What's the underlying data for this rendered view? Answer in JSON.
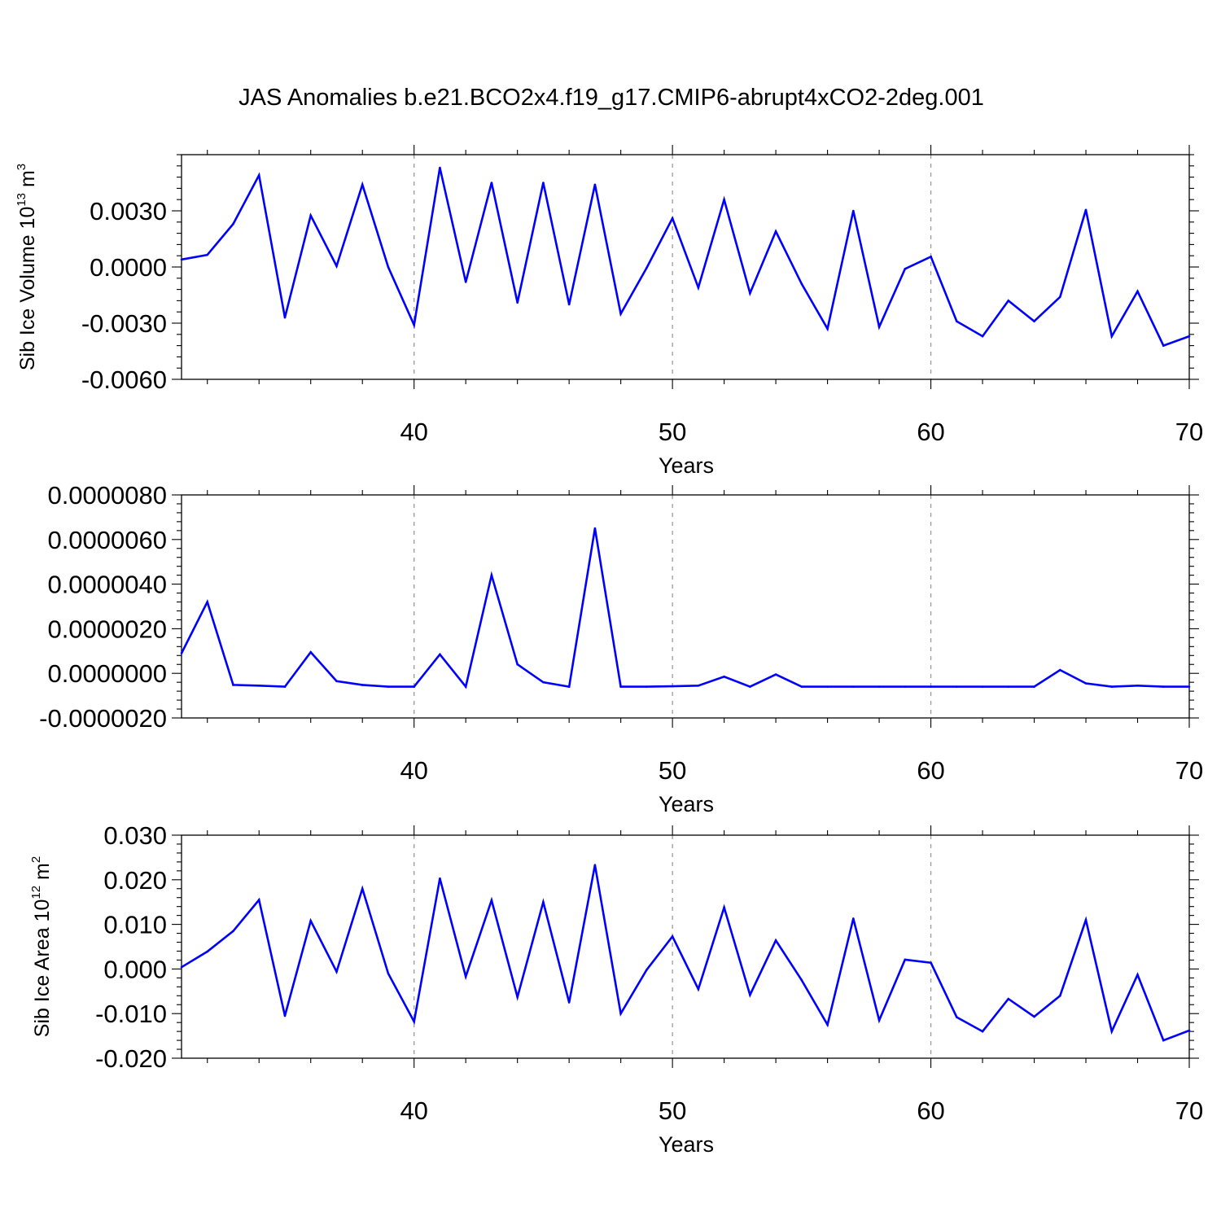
{
  "title": "JAS Anomalies b.e21.BCO2x4.f19_g17.CMIP6-abrupt4xCO2-2deg.001",
  "colors": {
    "line": "#0000ff",
    "grid": "#9a9a9a",
    "axis": "#000000"
  },
  "chart_data": [
    {
      "type": "line",
      "ylabel_text": "Sib Ice Volume 10",
      "ylabel_exp": "13",
      "ylabel_unit": " m",
      "ylabel_unit_exp": "3",
      "xlabel": "Years",
      "xlim": [
        31,
        70
      ],
      "ylim": [
        -0.006,
        0.006
      ],
      "x_ticks": [
        40,
        50,
        60,
        70
      ],
      "x_tick_labels": [
        "40",
        "50",
        "60",
        "70"
      ],
      "y_ticks": [
        -0.006,
        -0.003,
        0.0,
        0.003
      ],
      "y_tick_labels": [
        "-0.0060",
        "-0.0030",
        "0.0000",
        "0.0030"
      ],
      "grid_x": [
        40,
        50,
        60
      ],
      "x": [
        31,
        32,
        33,
        34,
        35,
        36,
        37,
        38,
        39,
        40,
        41,
        42,
        43,
        44,
        45,
        46,
        47,
        48,
        49,
        50,
        51,
        52,
        53,
        54,
        55,
        56,
        57,
        58,
        59,
        60,
        61,
        62,
        63,
        64,
        65,
        66,
        67,
        68,
        69,
        70
      ],
      "values": [
        0.0004,
        0.00065,
        0.0023,
        0.0049,
        -0.0027,
        0.00275,
        5e-05,
        0.0044,
        0.0,
        -0.0031,
        0.0053,
        -0.0008,
        0.0045,
        -0.0019,
        0.0045,
        -0.002,
        0.0044,
        -0.0025,
        -5e-05,
        0.0026,
        -0.0011,
        0.0036,
        -0.0014,
        0.0019,
        -0.0009,
        -0.0033,
        0.003,
        -0.0032,
        -0.0001,
        0.00055,
        -0.0029,
        -0.0037,
        -0.0018,
        -0.0029,
        -0.0016,
        0.00305,
        -0.0037,
        -0.0013,
        -0.0042,
        -0.0037
      ]
    },
    {
      "type": "line",
      "ylabel_text": "",
      "xlabel": "Years",
      "xlim": [
        31,
        70
      ],
      "ylim": [
        -2e-06,
        8e-06
      ],
      "x_ticks": [
        40,
        50,
        60,
        70
      ],
      "x_tick_labels": [
        "40",
        "50",
        "60",
        "70"
      ],
      "y_ticks": [
        -2e-06,
        0.0,
        2e-06,
        4e-06,
        6e-06,
        8e-06
      ],
      "y_tick_labels": [
        "-0.0000020",
        "0.0000000",
        "0.0000020",
        "0.0000040",
        "0.0000060",
        "0.0000080"
      ],
      "grid_x": [
        40,
        50,
        60
      ],
      "x": [
        31,
        32,
        33,
        34,
        35,
        36,
        37,
        38,
        39,
        40,
        41,
        42,
        43,
        44,
        45,
        46,
        47,
        48,
        49,
        50,
        51,
        52,
        53,
        54,
        55,
        56,
        57,
        58,
        59,
        60,
        61,
        62,
        63,
        64,
        65,
        66,
        67,
        68,
        69,
        70
      ],
      "values": [
        9e-07,
        3.2e-06,
        -5.2e-07,
        -5.5e-07,
        -6e-07,
        9.5e-07,
        -3.5e-07,
        -5.2e-07,
        -6e-07,
        -6e-07,
        8.5e-07,
        -6e-07,
        4.4e-06,
        4e-07,
        -4e-07,
        -6e-07,
        6.5e-06,
        -6e-07,
        -6e-07,
        -5.8e-07,
        -5.5e-07,
        -1.5e-07,
        -6e-07,
        -5e-08,
        -6e-07,
        -6e-07,
        -6e-07,
        -6e-07,
        -6e-07,
        -6e-07,
        -6e-07,
        -6e-07,
        -6e-07,
        -6e-07,
        1.5e-07,
        -4.5e-07,
        -6e-07,
        -5.5e-07,
        -6e-07,
        -6e-07
      ]
    },
    {
      "type": "line",
      "ylabel_text": "Sib Ice Area 10",
      "ylabel_exp": "12",
      "ylabel_unit": " m",
      "ylabel_unit_exp": "2",
      "xlabel": "Years",
      "xlim": [
        31,
        70
      ],
      "ylim": [
        -0.02,
        0.03
      ],
      "x_ticks": [
        40,
        50,
        60,
        70
      ],
      "x_tick_labels": [
        "40",
        "50",
        "60",
        "70"
      ],
      "y_ticks": [
        -0.02,
        -0.01,
        0.0,
        0.01,
        0.02,
        0.03
      ],
      "y_tick_labels": [
        "-0.020",
        "-0.010",
        "0.000",
        "0.010",
        "0.020",
        "0.030"
      ],
      "grid_x": [
        40,
        50,
        60
      ],
      "x": [
        31,
        32,
        33,
        34,
        35,
        36,
        37,
        38,
        39,
        40,
        41,
        42,
        43,
        44,
        45,
        46,
        47,
        48,
        49,
        50,
        51,
        52,
        53,
        54,
        55,
        56,
        57,
        58,
        59,
        60,
        61,
        62,
        63,
        64,
        65,
        66,
        67,
        68,
        69,
        70
      ],
      "values": [
        0.0004,
        0.0039,
        0.0085,
        0.0155,
        -0.0105,
        0.0108,
        -0.0006,
        0.018,
        -0.001,
        -0.0118,
        0.0203,
        -0.0017,
        0.0154,
        -0.0063,
        0.015,
        -0.0075,
        0.0233,
        -0.01,
        -0.0002,
        0.0073,
        -0.0045,
        0.0138,
        -0.0058,
        0.0064,
        -0.0025,
        -0.0125,
        0.0113,
        -0.0115,
        0.0021,
        0.0014,
        -0.0108,
        -0.014,
        -0.0067,
        -0.0107,
        -0.006,
        0.011,
        -0.014,
        -0.0013,
        -0.016,
        -0.0138
      ]
    }
  ]
}
